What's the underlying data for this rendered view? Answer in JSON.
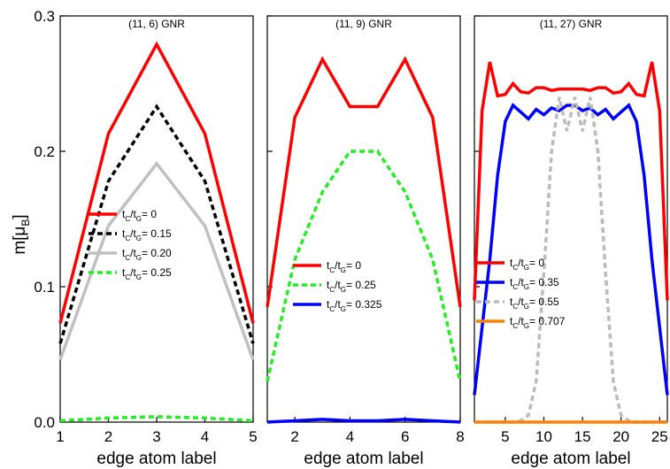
{
  "chart_data": {
    "type": "line",
    "ylabel": "m[μB]",
    "ylabel_main": "m[μ",
    "ylabel_sub": "B",
    "ylabel_close": "]",
    "ylim": [
      0.0,
      0.3
    ],
    "yticks": [
      0.0,
      0.1,
      0.2,
      0.3
    ],
    "ytick_labels": [
      "0.0",
      "0.1",
      "0.2",
      "0.3"
    ],
    "legend_label_parts": {
      "t": "t",
      "c": "C",
      "slash": "/",
      "g": "G"
    },
    "panels": [
      {
        "title": "(11, 6) GNR",
        "xlabel": "edge atom label",
        "xlim": [
          1,
          5
        ],
        "xticks": [
          1,
          2,
          3,
          4,
          5
        ],
        "legend_position": "middle-left",
        "series": [
          {
            "name": "tC/tG= 0",
            "ratio": "= 0",
            "color": "#ff0000",
            "style": "solid",
            "x": [
              1,
              2,
              3,
              4,
              5
            ],
            "y": [
              0.073,
              0.213,
              0.279,
              0.213,
              0.073
            ]
          },
          {
            "name": "tC/tG= 0.15",
            "ratio": "= 0.15",
            "color": "#000000",
            "style": "dashed",
            "x": [
              1,
              2,
              3,
              4,
              5
            ],
            "y": [
              0.058,
              0.178,
              0.233,
              0.178,
              0.058
            ]
          },
          {
            "name": "tC/tG= 0.20",
            "ratio": "= 0.20",
            "color": "#c0c0c0",
            "style": "solid",
            "x": [
              1,
              2,
              3,
              4,
              5
            ],
            "y": [
              0.046,
              0.145,
              0.191,
              0.145,
              0.046
            ]
          },
          {
            "name": "tC/tG= 0.25",
            "ratio": "= 0.25",
            "color": "#22ee22",
            "style": "dashed",
            "x": [
              1,
              2,
              3,
              4,
              5
            ],
            "y": [
              0.001,
              0.003,
              0.004,
              0.003,
              0.001
            ]
          }
        ]
      },
      {
        "title": "(11, 9) GNR",
        "xlabel": "edge atom label",
        "xlim": [
          1,
          8
        ],
        "xticks": [
          2,
          4,
          6,
          8
        ],
        "legend_position": "center",
        "series": [
          {
            "name": "tC/tG= 0",
            "ratio": "= 0",
            "color": "#ff0000",
            "style": "solid",
            "x": [
              1,
              2,
              3,
              4,
              5,
              6,
              7,
              8
            ],
            "y": [
              0.085,
              0.225,
              0.268,
              0.233,
              0.233,
              0.268,
              0.225,
              0.085
            ]
          },
          {
            "name": "tC/tG= 0.25",
            "ratio": "= 0.25",
            "color": "#22ee22",
            "style": "dashed",
            "x": [
              1,
              2,
              3,
              4,
              5,
              6,
              7,
              8
            ],
            "y": [
              0.03,
              0.12,
              0.17,
              0.2,
              0.2,
              0.17,
              0.12,
              0.03
            ]
          },
          {
            "name": "tC/tG= 0.325",
            "ratio": "= 0.325",
            "color": "#0000ff",
            "style": "solid",
            "x": [
              1,
              2,
              3,
              4,
              5,
              6,
              7,
              8
            ],
            "y": [
              0.0,
              0.001,
              0.002,
              0.001,
              0.001,
              0.002,
              0.001,
              0.0
            ]
          }
        ]
      },
      {
        "title": "(11, 27) GNR",
        "xlabel": "edge atom label",
        "xlim": [
          1,
          26
        ],
        "xticks": [
          5,
          10,
          15,
          20,
          25
        ],
        "legend_position": "bottom-center",
        "series": [
          {
            "name": "tC/tG= 0",
            "ratio": "= 0",
            "color": "#ff0000",
            "style": "solid",
            "x": [
              1,
              2,
              3,
              4,
              5,
              6,
              7,
              8,
              9,
              10,
              11,
              12,
              13,
              14,
              15,
              16,
              17,
              18,
              19,
              20,
              21,
              22,
              23,
              24,
              25,
              26
            ],
            "y": [
              0.09,
              0.23,
              0.266,
              0.241,
              0.242,
              0.25,
              0.244,
              0.243,
              0.247,
              0.247,
              0.245,
              0.246,
              0.246,
              0.246,
              0.246,
              0.245,
              0.247,
              0.247,
              0.243,
              0.244,
              0.25,
              0.242,
              0.241,
              0.266,
              0.23,
              0.09
            ]
          },
          {
            "name": "tC/tG= 0.35",
            "ratio": "= 0.35",
            "color": "#0000ff",
            "style": "solid",
            "x": [
              1,
              2,
              3,
              4,
              5,
              6,
              7,
              8,
              9,
              10,
              11,
              12,
              13,
              14,
              15,
              16,
              17,
              18,
              19,
              20,
              21,
              22,
              23,
              24,
              25,
              26
            ],
            "y": [
              0.02,
              0.07,
              0.12,
              0.182,
              0.222,
              0.234,
              0.229,
              0.224,
              0.231,
              0.227,
              0.232,
              0.23,
              0.234,
              0.234,
              0.23,
              0.232,
              0.227,
              0.231,
              0.224,
              0.229,
              0.234,
              0.222,
              0.182,
              0.12,
              0.07,
              0.02
            ]
          },
          {
            "name": "tC/tG= 0.55",
            "ratio": "= 0.55",
            "color": "#bbbbbb",
            "style": "dashed",
            "x": [
              1,
              2,
              3,
              4,
              5,
              6,
              7,
              8,
              9,
              10,
              11,
              12,
              13,
              14,
              15,
              16,
              17,
              18,
              19,
              20,
              21,
              22,
              23,
              24,
              25,
              26
            ],
            "y": [
              0.0,
              0.0,
              0.0,
              0.0,
              0.0,
              0.0,
              0.001,
              0.005,
              0.03,
              0.11,
              0.2,
              0.24,
              0.215,
              0.24,
              0.215,
              0.24,
              0.2,
              0.11,
              0.03,
              0.005,
              0.001,
              0.0,
              0.0,
              0.0,
              0.0,
              0.0
            ]
          },
          {
            "name": "tC/tG= 0.707",
            "ratio": "= 0.707",
            "color": "#ff8000",
            "style": "solid",
            "x": [
              1,
              26
            ],
            "y": [
              0.0,
              0.0
            ]
          }
        ]
      }
    ]
  }
}
